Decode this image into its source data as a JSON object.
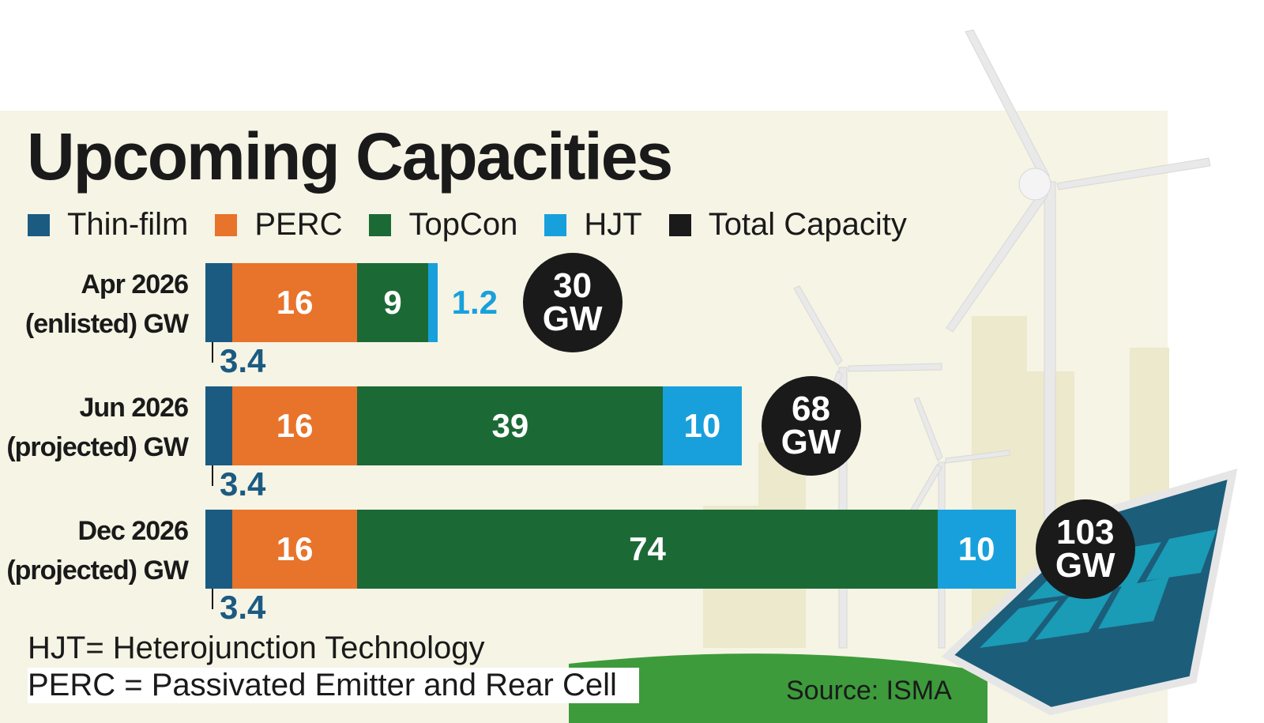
{
  "chart_data": {
    "type": "stacked-bar-horizontal",
    "title": "Upcoming Capacities",
    "categories": [
      "Apr 2026\n(enlisted) GW",
      "Jun 2026\n(projected) GW",
      "Dec 2026\n(projected) GW"
    ],
    "series": [
      {
        "name": "Thin-film",
        "color": "#1b5b82",
        "values": [
          3.4,
          3.4,
          3.4
        ]
      },
      {
        "name": "PERC",
        "color": "#e8732a",
        "values": [
          16,
          16,
          16
        ]
      },
      {
        "name": "TopCon",
        "color": "#1b6a36",
        "values": [
          9,
          39,
          74
        ]
      },
      {
        "name": "HJT",
        "color": "#18a0dc",
        "values": [
          1.2,
          10,
          10
        ]
      },
      {
        "name": "Total Capacity",
        "color": "#1a1a1a",
        "values": [
          30,
          68,
          103
        ],
        "value_labels": [
          "30\nGW",
          "68\nGW",
          "103\nGW"
        ]
      }
    ],
    "notes": [
      "HJT= Heterojunction Technology",
      "PERC = Passivated Emitter and Rear Cell"
    ],
    "source": "Source: ISMA"
  }
}
